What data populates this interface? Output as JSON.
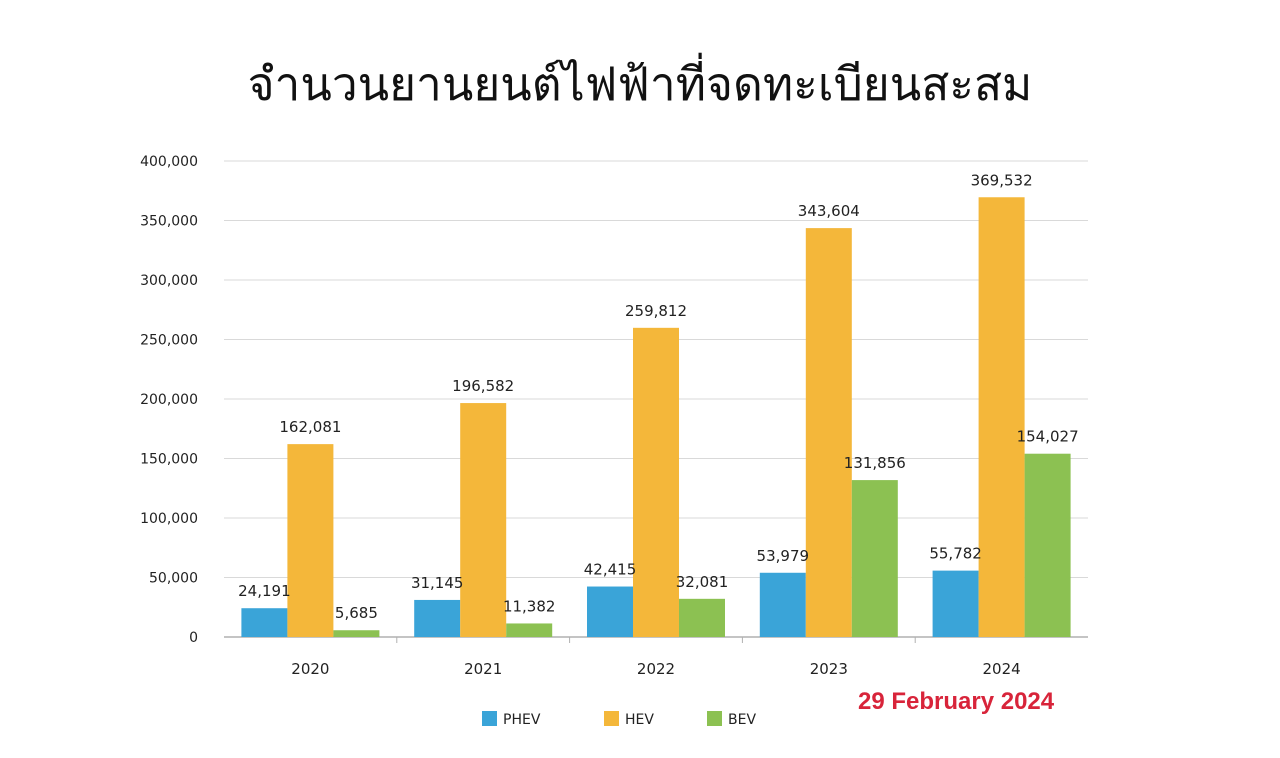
{
  "chart_data": {
    "type": "bar",
    "title": "จำนวนยานยนต์ไฟฟ้าที่จดทะเบียนสะสม",
    "categories": [
      "2020",
      "2021",
      "2022",
      "2023",
      "2024"
    ],
    "series": [
      {
        "name": "PHEV",
        "color": "#3aa4d8",
        "values": [
          24191,
          31145,
          42415,
          53979,
          55782
        ],
        "labels": [
          "24,191",
          "31,145",
          "42,415",
          "53,979",
          "55,782"
        ]
      },
      {
        "name": "HEV",
        "color": "#f4b73a",
        "values": [
          162081,
          196582,
          259812,
          343604,
          369532
        ],
        "labels": [
          "162,081",
          "196,582",
          "259,812",
          "343,604",
          "369,532"
        ]
      },
      {
        "name": "BEV",
        "color": "#8cc152",
        "values": [
          5685,
          11382,
          32081,
          131856,
          154027
        ],
        "labels": [
          "5,685",
          "11,382",
          "32,081",
          "131,856",
          "154,027"
        ]
      }
    ],
    "ylim": [
      0,
      400000
    ],
    "yticks": [
      "0",
      "50,000",
      "100,000",
      "150,000",
      "200,000",
      "250,000",
      "300,000",
      "350,000",
      "400,000"
    ],
    "ytick_values": [
      0,
      50000,
      100000,
      150000,
      200000,
      250000,
      300000,
      350000,
      400000
    ],
    "grid": true,
    "legend": "bottom",
    "annotation": "29 February 2024"
  }
}
